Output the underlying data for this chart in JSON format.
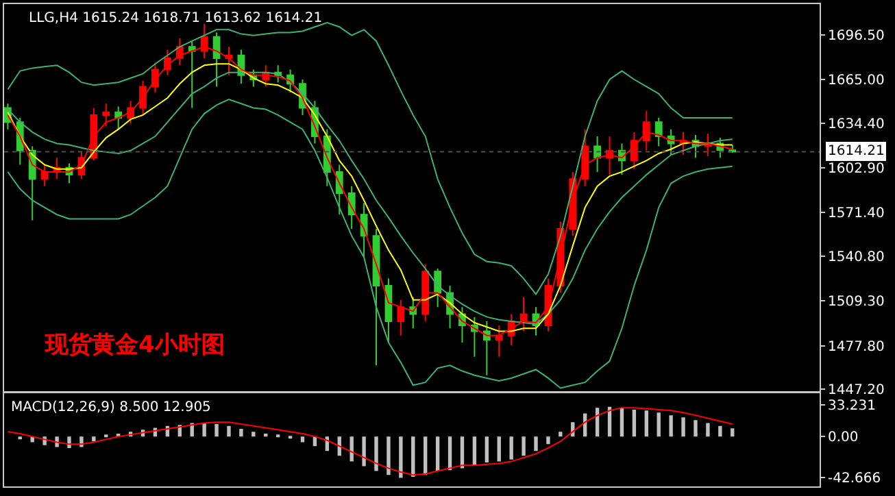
{
  "chart_data": [
    {
      "type": "candlestick",
      "title": "LLG,H4 1615.24 1618.71 1613.62 1614.21",
      "categories": [
        null,
        null,
        null,
        null,
        null,
        null,
        null,
        null,
        null,
        null,
        null,
        null,
        null,
        null,
        null,
        null,
        null,
        null,
        null,
        null,
        null,
        null,
        null,
        null,
        null,
        null,
        null,
        null,
        null,
        null,
        null,
        null,
        null,
        null,
        null,
        null,
        null,
        null,
        null,
        null,
        null,
        null,
        null,
        null,
        null,
        null,
        null,
        null,
        null,
        null,
        null,
        null,
        null,
        null,
        null,
        null,
        null,
        null,
        null,
        null
      ],
      "ohlc": [
        [
          1645,
          1648,
          1630,
          1635
        ],
        [
          1635,
          1638,
          1605,
          1615
        ],
        [
          1615,
          1618,
          1566,
          1595
        ],
        [
          1595,
          1605,
          1590,
          1600
        ],
        [
          1600,
          1610,
          1595,
          1603
        ],
        [
          1603,
          1606,
          1592,
          1598
        ],
        [
          1598,
          1614,
          1595,
          1610
        ],
        [
          1610,
          1645,
          1608,
          1640
        ],
        [
          1640,
          1648,
          1632,
          1642
        ],
        [
          1642,
          1646,
          1630,
          1638
        ],
        [
          1638,
          1650,
          1634,
          1645
        ],
        [
          1645,
          1664,
          1640,
          1660
        ],
        [
          1660,
          1676,
          1656,
          1672
        ],
        [
          1672,
          1686,
          1668,
          1680
        ],
        [
          1680,
          1694,
          1675,
          1688
        ],
        [
          1688,
          1692,
          1645,
          1685
        ],
        [
          1685,
          1704,
          1680,
          1695
        ],
        [
          1695,
          1698,
          1660,
          1680
        ],
        [
          1680,
          1688,
          1668,
          1682
        ],
        [
          1682,
          1686,
          1662,
          1668
        ],
        [
          1668,
          1672,
          1660,
          1665
        ],
        [
          1665,
          1675,
          1660,
          1670
        ],
        [
          1670,
          1675,
          1663,
          1668
        ],
        [
          1668,
          1672,
          1656,
          1662
        ],
        [
          1662,
          1665,
          1640,
          1645
        ],
        [
          1645,
          1650,
          1620,
          1625
        ],
        [
          1625,
          1630,
          1590,
          1600
        ],
        [
          1600,
          1605,
          1570,
          1585
        ],
        [
          1585,
          1590,
          1560,
          1570
        ],
        [
          1570,
          1578,
          1540,
          1555
        ],
        [
          1555,
          1560,
          1464,
          1520
        ],
        [
          1520,
          1525,
          1480,
          1495
        ],
        [
          1495,
          1510,
          1485,
          1505
        ],
        [
          1505,
          1512,
          1490,
          1500
        ],
        [
          1500,
          1535,
          1495,
          1530
        ],
        [
          1530,
          1532,
          1505,
          1515
        ],
        [
          1515,
          1520,
          1490,
          1500
        ],
        [
          1500,
          1505,
          1480,
          1492
        ],
        [
          1492,
          1498,
          1470,
          1488
        ],
        [
          1488,
          1495,
          1457,
          1482
        ],
        [
          1482,
          1492,
          1470,
          1485
        ],
        [
          1485,
          1500,
          1478,
          1495
        ],
        [
          1495,
          1512,
          1488,
          1500
        ],
        [
          1500,
          1505,
          1485,
          1492
        ],
        [
          1492,
          1525,
          1488,
          1520
        ],
        [
          1520,
          1565,
          1515,
          1560
        ],
        [
          1560,
          1600,
          1555,
          1595
        ],
        [
          1595,
          1630,
          1590,
          1618
        ],
        [
          1618,
          1625,
          1600,
          1610
        ],
        [
          1610,
          1625,
          1598,
          1615
        ],
        [
          1615,
          1620,
          1598,
          1608
        ],
        [
          1608,
          1628,
          1602,
          1622
        ],
        [
          1622,
          1643,
          1615,
          1635
        ],
        [
          1635,
          1638,
          1618,
          1625
        ],
        [
          1625,
          1630,
          1612,
          1620
        ],
        [
          1620,
          1628,
          1612,
          1622
        ],
        [
          1622,
          1626,
          1610,
          1618
        ],
        [
          1618,
          1627,
          1611,
          1620
        ],
        [
          1620,
          1624,
          1610,
          1615.24
        ],
        [
          1615.24,
          1618.71,
          1613.62,
          1614.21
        ]
      ],
      "colors": [
        "#32cd32",
        "#32cd32",
        "#32cd32",
        "#ff0000",
        "#ff0000",
        "#32cd32",
        "#ff0000",
        "#ff0000",
        "#ff0000",
        "#32cd32",
        "#ff0000",
        "#ff0000",
        "#ff0000",
        "#ff0000",
        "#ff0000",
        "#32cd32",
        "#ff0000",
        "#32cd32",
        "#ff0000",
        "#32cd32",
        "#32cd32",
        "#ff0000",
        "#32cd32",
        "#32cd32",
        "#32cd32",
        "#32cd32",
        "#32cd32",
        "#32cd32",
        "#32cd32",
        "#32cd32",
        "#32cd32",
        "#32cd32",
        "#ff0000",
        "#32cd32",
        "#ff0000",
        "#32cd32",
        "#32cd32",
        "#32cd32",
        "#32cd32",
        "#32cd32",
        "#ff0000",
        "#ff0000",
        "#ff0000",
        "#32cd32",
        "#ff0000",
        "#ff0000",
        "#ff0000",
        "#ff0000",
        "#32cd32",
        "#ff0000",
        "#32cd32",
        "#ff0000",
        "#ff0000",
        "#32cd32",
        "#32cd32",
        "#ff0000",
        "#32cd32",
        "#ff0000",
        "#32cd32",
        "#32cd32"
      ],
      "series": [
        {
          "type": "line",
          "color": "#3cb371",
          "values": [
            1658,
            1671,
            1673,
            1674,
            1675,
            1670,
            1663,
            1661,
            1662,
            1663,
            1666,
            1669,
            1676,
            1682,
            1688,
            1692,
            1696,
            1700,
            1700,
            1697,
            1696,
            1697,
            1698,
            1698,
            1699,
            1702,
            1705,
            1702,
            1696,
            1700,
            1692,
            1675,
            1657,
            1640,
            1625,
            1595,
            1575,
            1557,
            1542,
            1537,
            1536,
            1534,
            1525,
            1514,
            1528,
            1555,
            1590,
            1625,
            1650,
            1665,
            1671,
            1665,
            1660,
            1655,
            1645,
            1638,
            1638,
            1638,
            1638,
            1638
          ]
        },
        {
          "type": "line",
          "color": "#3cb371",
          "values": [
            1644,
            1635,
            1628,
            1623,
            1620,
            1619,
            1617,
            1615,
            1614,
            1613,
            1615,
            1620,
            1625,
            1635,
            1645,
            1655,
            1660,
            1666,
            1670,
            1670,
            1670,
            1670,
            1669,
            1663,
            1655,
            1645,
            1633,
            1622,
            1608,
            1595,
            1580,
            1568,
            1555,
            1543,
            1532,
            1520,
            1513,
            1507,
            1502,
            1498,
            1496,
            1495,
            1494,
            1493,
            1500,
            1510,
            1525,
            1545,
            1560,
            1572,
            1582,
            1590,
            1598,
            1605,
            1612,
            1615,
            1618,
            1620,
            1622,
            1623
          ]
        },
        {
          "type": "line",
          "color": "#3cb371",
          "values": [
            1600,
            1588,
            1580,
            1575,
            1570,
            1567,
            1567,
            1567,
            1567,
            1567,
            1570,
            1576,
            1582,
            1590,
            1610,
            1630,
            1641,
            1647,
            1651,
            1648,
            1645,
            1644,
            1640,
            1635,
            1630,
            1615,
            1596,
            1575,
            1555,
            1540,
            1505,
            1480,
            1466,
            1450,
            1452,
            1462,
            1464,
            1460,
            1457,
            1455,
            1453,
            1455,
            1458,
            1461,
            1455,
            1448,
            1450,
            1452,
            1460,
            1467,
            1490,
            1520,
            1545,
            1575,
            1592,
            1597,
            1600,
            1602,
            1603,
            1604
          ]
        },
        {
          "type": "line",
          "color": "#ffff00",
          "values": [
            1642,
            1625,
            1612,
            1605,
            1602,
            1602,
            1603,
            1614,
            1624,
            1630,
            1637,
            1640,
            1646,
            1652,
            1662,
            1670,
            1675,
            1676,
            1676,
            1672,
            1666,
            1662,
            1661,
            1657,
            1652,
            1640,
            1625,
            1608,
            1597,
            1580,
            1562,
            1545,
            1531,
            1510,
            1510,
            1514,
            1508,
            1500,
            1494,
            1491,
            1488,
            1488,
            1490,
            1490,
            1500,
            1520,
            1548,
            1575,
            1590,
            1597,
            1600,
            1604,
            1608,
            1613,
            1616,
            1620,
            1621,
            1620,
            1619,
            1619
          ]
        },
        {
          "type": "line",
          "color": "#ff0000",
          "values": [
            1640,
            1625,
            1605,
            1600,
            1600,
            1600,
            1605,
            1625,
            1635,
            1638,
            1642,
            1652,
            1665,
            1675,
            1682,
            1685,
            1688,
            1685,
            1680,
            1672,
            1668,
            1668,
            1667,
            1664,
            1652,
            1632,
            1610,
            1592,
            1575,
            1560,
            1535,
            1508,
            1505,
            1502,
            1515,
            1515,
            1505,
            1495,
            1490,
            1485,
            1485,
            1490,
            1495,
            1494,
            1505,
            1540,
            1580,
            1605,
            1610,
            1612,
            1610,
            1618,
            1628,
            1626,
            1622,
            1622,
            1620,
            1620,
            1618,
            1616
          ]
        }
      ],
      "ylim": [
        1446,
        1718
      ],
      "yticks": [
        {
          "value": 1696.5,
          "label": "1696.50"
        },
        {
          "value": 1665,
          "label": "1665.00"
        },
        {
          "value": 1634.4,
          "label": "1634.40"
        },
        {
          "value": 1602.9,
          "label": "1602.90"
        },
        {
          "value": 1571.4,
          "label": "1571.40"
        },
        {
          "value": 1540.8,
          "label": "1540.80"
        },
        {
          "value": 1509.3,
          "label": "1509.30"
        },
        {
          "value": 1477.8,
          "label": "1477.80"
        },
        {
          "value": 1447.2,
          "label": "1447.20"
        }
      ],
      "ref_lines": [
        {
          "axis": "y",
          "value": 1614.21,
          "label": "1614.21",
          "color": "#505050",
          "line_style": "dotted"
        }
      ],
      "annotations": [
        "现货黄金4小时图"
      ],
      "tick_labels": "y"
    },
    {
      "type": "bar",
      "title": "MACD(12,26,9) 8.500 12.905",
      "categories": [
        null,
        null,
        null,
        null,
        null,
        null,
        null,
        null,
        null,
        null,
        null,
        null,
        null,
        null,
        null,
        null,
        null,
        null,
        null,
        null,
        null,
        null,
        null,
        null,
        null,
        null,
        null,
        null,
        null,
        null,
        null,
        null,
        null,
        null,
        null,
        null,
        null,
        null,
        null,
        null,
        null,
        null,
        null,
        null,
        null,
        null,
        null,
        null,
        null,
        null,
        null,
        null,
        null,
        null,
        null,
        null,
        null,
        null,
        null,
        null
      ],
      "series": [
        {
          "type": "bar",
          "color": "#c0c0c0",
          "values": [
            0,
            -3,
            -6,
            -9,
            -11,
            -12,
            -11,
            -5,
            1,
            3,
            5,
            7,
            9,
            11,
            12,
            14,
            14,
            13,
            11,
            8,
            5,
            3,
            1,
            -2,
            -6,
            -10,
            -15,
            -20,
            -26,
            -31,
            -36,
            -40,
            -43,
            -42,
            -40,
            -36,
            -35,
            -33,
            -30,
            -27,
            -26,
            -24,
            -20,
            -15,
            -8,
            5,
            15,
            24,
            30,
            31,
            30,
            28,
            27,
            25,
            22,
            20,
            17,
            14,
            11,
            8.5
          ]
        },
        {
          "type": "line",
          "color": "#ff0000",
          "values": [
            5,
            3,
            0,
            -3,
            -6,
            -8,
            -8,
            -6,
            -3,
            0,
            2,
            4,
            6,
            8,
            10,
            12,
            14,
            15,
            15,
            13,
            11,
            9,
            7,
            5,
            3,
            0,
            -4,
            -10,
            -16,
            -22,
            -28,
            -33,
            -37,
            -40,
            -39,
            -36,
            -33,
            -30,
            -30,
            -29,
            -28,
            -26,
            -22,
            -18,
            -12,
            -5,
            5,
            15,
            22,
            27,
            30,
            30,
            29,
            28,
            27,
            25,
            22,
            19,
            16,
            12.905
          ]
        }
      ],
      "ylim": [
        -52,
        45
      ],
      "yticks": [
        {
          "value": 33.231,
          "label": "33.231"
        },
        {
          "value": 0,
          "label": "0.00"
        },
        {
          "value": -42.666,
          "label": "-42.666"
        }
      ],
      "tick_labels": "y"
    }
  ]
}
